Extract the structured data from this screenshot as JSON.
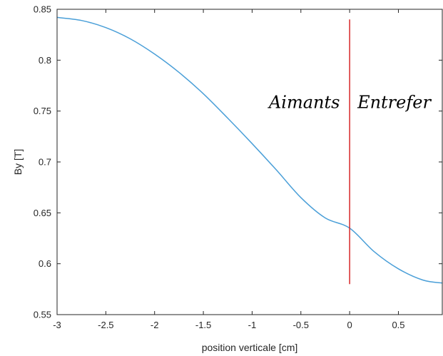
{
  "chart_data": {
    "type": "line",
    "title": "",
    "xlabel": "position verticale [cm]",
    "ylabel": "By [T]",
    "xlim": [
      -3,
      0.95
    ],
    "ylim": [
      0.55,
      0.85
    ],
    "xticks": [
      -3,
      -2.5,
      -2,
      -1.5,
      -1,
      -0.5,
      0,
      0.5
    ],
    "xtick_labels": [
      "-3",
      "-2.5",
      "-2",
      "-1.5",
      "-1",
      "-0.5",
      "0",
      "0.5"
    ],
    "yticks": [
      0.55,
      0.6,
      0.65,
      0.7,
      0.75,
      0.8,
      0.85
    ],
    "ytick_labels": [
      "0.55",
      "0.6",
      "0.65",
      "0.7",
      "0.75",
      "0.8",
      "0.85"
    ],
    "grid": false,
    "series": [
      {
        "color": "#4a9fd8",
        "x": [
          -3.0,
          -2.75,
          -2.5,
          -2.25,
          -2.0,
          -1.75,
          -1.5,
          -1.25,
          -1.0,
          -0.75,
          -0.5,
          -0.25,
          0.0,
          0.25,
          0.5,
          0.75,
          0.95
        ],
        "y": [
          0.842,
          0.839,
          0.832,
          0.821,
          0.806,
          0.788,
          0.767,
          0.743,
          0.718,
          0.692,
          0.665,
          0.645,
          0.635,
          0.612,
          0.595,
          0.584,
          0.581
        ]
      }
    ],
    "vertical_lines": [
      {
        "x": 0,
        "y_from": 0.58,
        "y_to": 0.84,
        "color": "#d62728"
      }
    ],
    "annotations": [
      {
        "text": "Aimants",
        "x": -0.1,
        "y": 0.753,
        "anchor": "end"
      },
      {
        "text": "Entrefer",
        "x": 0.08,
        "y": 0.753,
        "anchor": "start"
      }
    ]
  }
}
